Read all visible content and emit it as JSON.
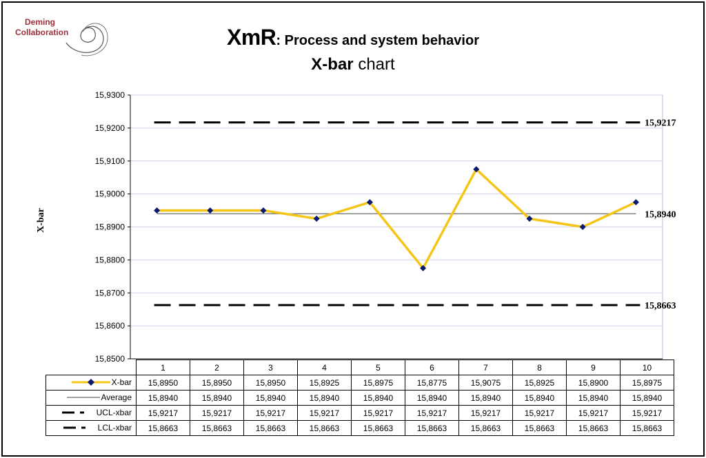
{
  "logo": {
    "line1": "Deming",
    "line2": "Collaboration"
  },
  "title": {
    "main": "XmR",
    "subtitle": ": Process and system behavior",
    "chart_name_bold": "X-bar",
    "chart_name_rest": " chart"
  },
  "colors": {
    "xbar": "#f5c518",
    "marker": "#0a1a6e",
    "average": "#808080",
    "limits": "#000000",
    "grid": "#d0d0e8"
  },
  "chart_data": {
    "type": "line",
    "title": "X-bar chart",
    "ylabel": "X-bar",
    "ylim": [
      15.85,
      15.93
    ],
    "ytick_labels": [
      "15,9300",
      "15,9200",
      "15,9100",
      "15,9000",
      "15,8900",
      "15,8800",
      "15,8700",
      "15,8600",
      "15,8500"
    ],
    "yticks": [
      15.93,
      15.92,
      15.91,
      15.9,
      15.89,
      15.88,
      15.87,
      15.86,
      15.85
    ],
    "categories": [
      "1",
      "2",
      "3",
      "4",
      "5",
      "6",
      "7",
      "8",
      "9",
      "10"
    ],
    "grid": true,
    "series": [
      {
        "name": "X-bar",
        "values": [
          15.895,
          15.895,
          15.895,
          15.8925,
          15.8975,
          15.8775,
          15.9075,
          15.8925,
          15.89,
          15.8975
        ],
        "labels": [
          "15,8950",
          "15,8950",
          "15,8950",
          "15,8925",
          "15,8975",
          "15,8775",
          "15,9075",
          "15,8925",
          "15,8900",
          "15,8975"
        ]
      },
      {
        "name": "Average",
        "values": [
          15.894,
          15.894,
          15.894,
          15.894,
          15.894,
          15.894,
          15.894,
          15.894,
          15.894,
          15.894
        ],
        "labels": [
          "15,8940",
          "15,8940",
          "15,8940",
          "15,8940",
          "15,8940",
          "15,8940",
          "15,8940",
          "15,8940",
          "15,8940",
          "15,8940"
        ]
      },
      {
        "name": "UCL-xbar",
        "values": [
          15.9217,
          15.9217,
          15.9217,
          15.9217,
          15.9217,
          15.9217,
          15.9217,
          15.9217,
          15.9217,
          15.9217
        ],
        "labels": [
          "15,9217",
          "15,9217",
          "15,9217",
          "15,9217",
          "15,9217",
          "15,9217",
          "15,9217",
          "15,9217",
          "15,9217",
          "15,9217"
        ]
      },
      {
        "name": "LCL-xbar",
        "values": [
          15.8663,
          15.8663,
          15.8663,
          15.8663,
          15.8663,
          15.8663,
          15.8663,
          15.8663,
          15.8663,
          15.8663
        ],
        "labels": [
          "15,8663",
          "15,8663",
          "15,8663",
          "15,8663",
          "15,8663",
          "15,8663",
          "15,8663",
          "15,8663",
          "15,8663",
          "15,8663"
        ]
      }
    ],
    "line_annotations": [
      {
        "label": "15,9217",
        "value": 15.9217
      },
      {
        "label": "15,8940",
        "value": 15.894
      },
      {
        "label": "15,8663",
        "value": 15.8663
      }
    ]
  }
}
